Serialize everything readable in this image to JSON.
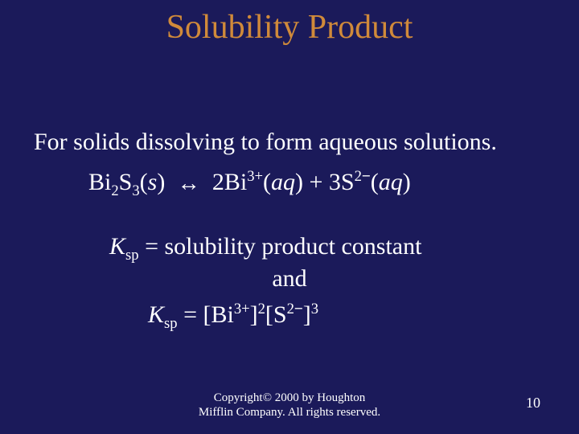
{
  "colors": {
    "background": "#1b1a5a",
    "title": "#d08a3a",
    "body": "#ffffff",
    "footer": "#ffffff",
    "pagenum": "#ffffff"
  },
  "title": "Solubility Product",
  "intro": "For solids dissolving to form aqueous solutions.",
  "equation": {
    "lhs_species": "Bi",
    "lhs_sub1": "2",
    "lhs_elem2": "S",
    "lhs_sub2": "3",
    "lhs_state": "s",
    "arrow": "↔",
    "rhs_coef1": "2",
    "rhs_species1": "Bi",
    "rhs_sup1": "3+",
    "rhs_state1": "aq",
    "plus": " + ",
    "rhs_coef2": "3",
    "rhs_species2": "S",
    "rhs_sup2_num": "2",
    "rhs_sup2_sign": "−",
    "rhs_state2": "aq"
  },
  "ksp_def": {
    "K": "K",
    "sub": "sp",
    "eq_text": " = solubility product constant"
  },
  "and": "and",
  "ksp_eq": {
    "K": "K",
    "sub": "sp",
    "eq": " = ",
    "lb1": "[Bi",
    "sup1": "3+",
    "rb1": "]",
    "pow1": "2",
    "lb2": "[S",
    "sup2_num": "2",
    "sup2_sign": "−",
    "rb2": "]",
    "pow2": "3"
  },
  "footer": {
    "line1": "Copyright© 2000 by Houghton",
    "line2": "Mifflin Company. All rights reserved."
  },
  "page_number": "10"
}
